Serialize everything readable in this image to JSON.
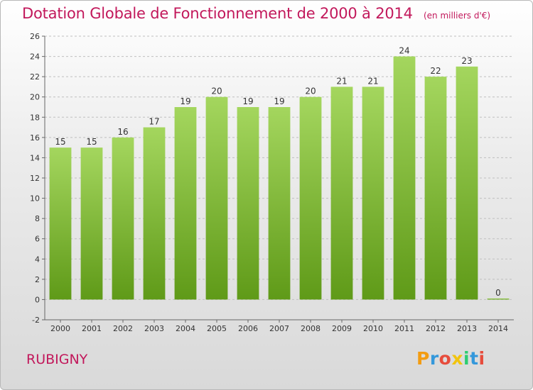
{
  "title": "Dotation Globale de Fonctionnement de 2000 à 2014",
  "unit_note": "(en milliers d'€)",
  "city": "RUBIGNY",
  "logo": {
    "letters": [
      "P",
      "r",
      "o",
      "x",
      "i",
      "t",
      "i"
    ],
    "colors": [
      "#f39c12",
      "#3498db",
      "#e74c3c",
      "#f1c40f",
      "#2ecc71",
      "#3498db",
      "#e74c3c"
    ]
  },
  "colors": {
    "title": "#c2185b",
    "bar_top": "#a4d65e",
    "bar_bottom": "#5f9a18",
    "grid": "#bfbfbf"
  },
  "chart_data": {
    "type": "bar",
    "categories": [
      "2000",
      "2001",
      "2002",
      "2003",
      "2004",
      "2005",
      "2006",
      "2007",
      "2008",
      "2009",
      "2010",
      "2011",
      "2012",
      "2013",
      "2014"
    ],
    "values": [
      15,
      15,
      16,
      17,
      19,
      20,
      19,
      19,
      20,
      21,
      21,
      24,
      22,
      23,
      0
    ],
    "title": "Dotation Globale de Fonctionnement de 2000 à 2014",
    "xlabel": "",
    "ylabel": "",
    "ylim": [
      -2,
      26
    ],
    "yticks": [
      -2,
      0,
      2,
      4,
      6,
      8,
      10,
      12,
      14,
      16,
      18,
      20,
      22,
      24,
      26
    ],
    "grid": true,
    "legend": "none"
  }
}
